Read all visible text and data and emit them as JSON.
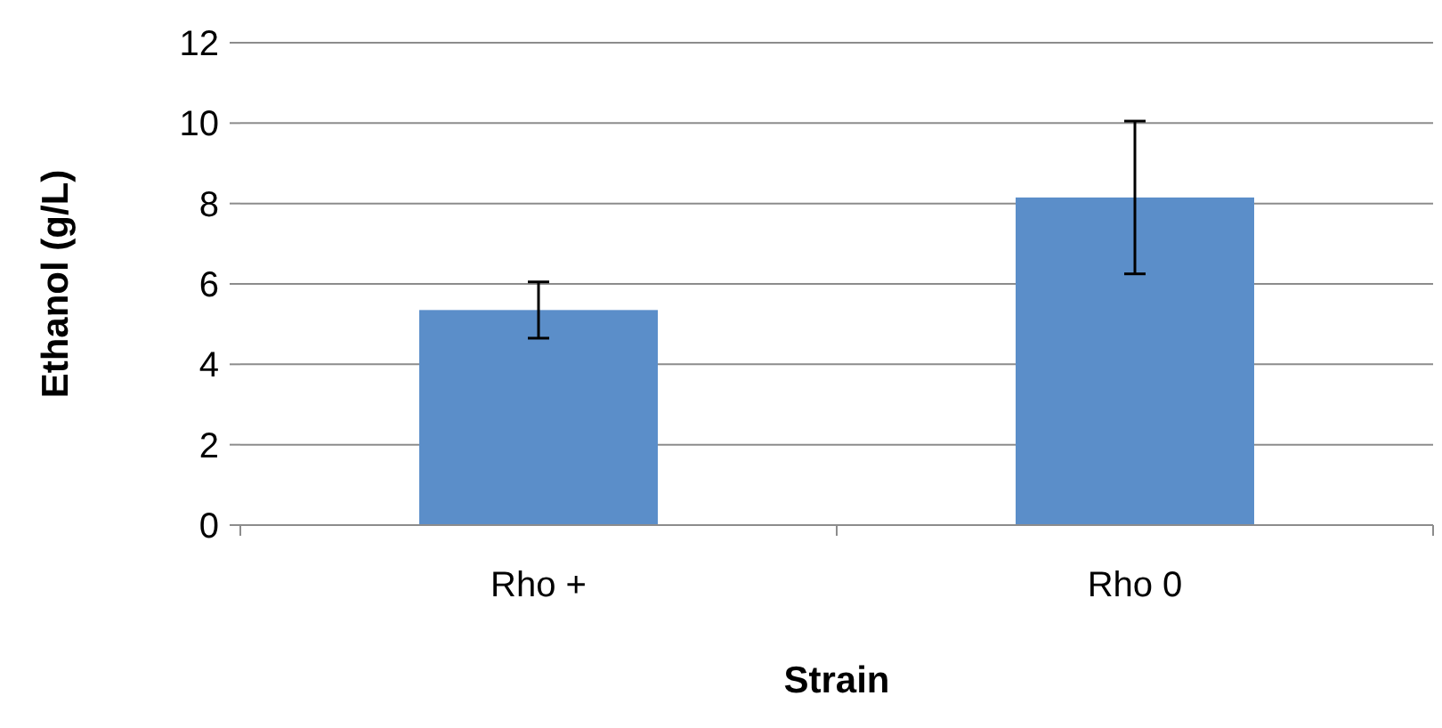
{
  "chart_data": {
    "type": "bar",
    "xlabel": "Strain",
    "ylabel": "Ethanol (g/L)",
    "categories": [
      "Rho +",
      "Rho 0"
    ],
    "values": [
      5.35,
      8.15
    ],
    "errors": [
      0.7,
      1.9
    ],
    "color": "#5b8ec9",
    "ylim": [
      0,
      12
    ],
    "yticks": [
      0,
      2,
      4,
      6,
      8,
      10,
      12
    ],
    "grid": "y"
  }
}
